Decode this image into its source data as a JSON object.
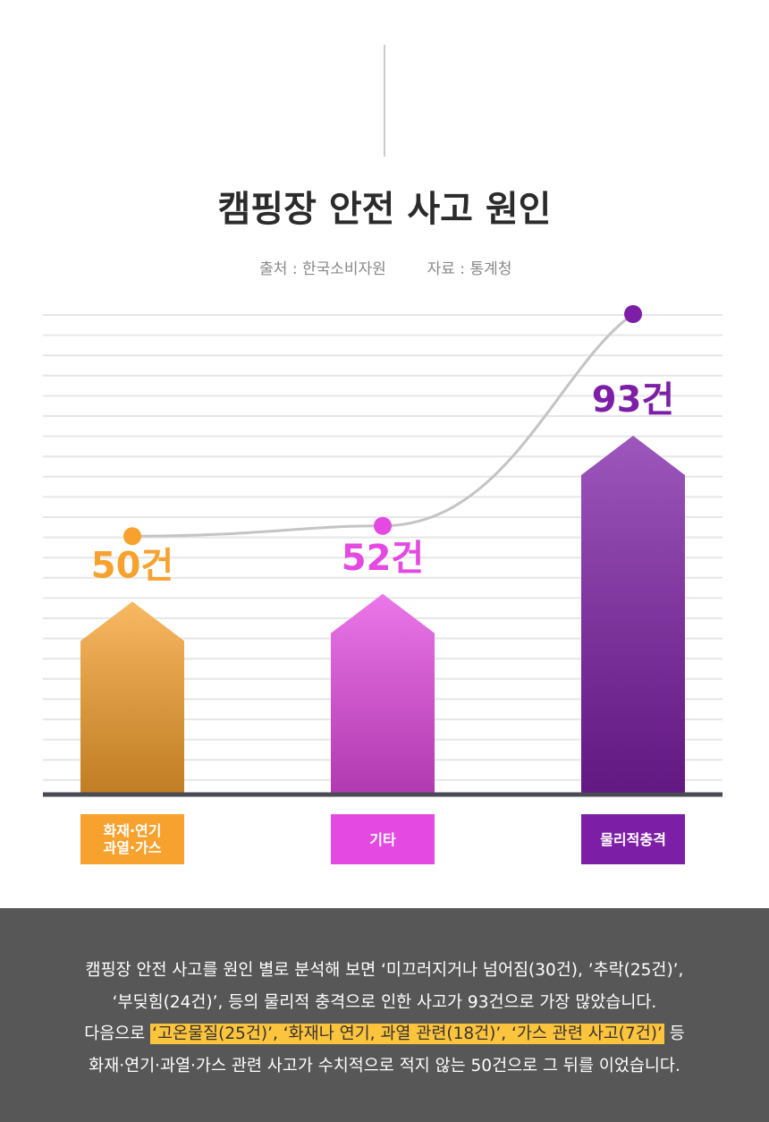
{
  "chart_data": {
    "type": "bar",
    "title": "캠핑장 안전 사고 원인",
    "source": "출처 : 한국소비자원",
    "data_source": "자료 : 통계청",
    "categories": [
      "화재·연기\n과열·가스",
      "기타",
      "물리적충격"
    ],
    "values": [
      50,
      52,
      93
    ],
    "value_labels": [
      "50건",
      "52건",
      "93건"
    ],
    "colors": [
      "#f7a12e",
      "#e44ae2",
      "#7d1fa6"
    ],
    "grid": true
  },
  "note": [
    [
      {
        "text": "캠핑장 안전 사고를 원인 별로 분석해 보면 ‘미끄러지거나 넘어짐(30건), ’추락(25건)’,",
        "highlight": false
      }
    ],
    [
      {
        "text": "‘부딪힘(24건)’, 등의 물리적 충격으로 인한 사고가 93건으로 가장 많았습니다.",
        "highlight": false
      }
    ],
    [
      {
        "text": "다음으로 ",
        "highlight": false
      },
      {
        "text": "‘고온물질(25건)’, ‘화재나 연기, 과열 관련(18건)’, ‘가스 관련 사고(7건)’",
        "highlight": true
      },
      {
        "text": " 등",
        "highlight": false
      }
    ],
    [
      {
        "text": "화재·연기·과열·가스 관련 사고가 수치적으로 적지 않는 50건으로 그 뒤를 이었습니다.",
        "highlight": false
      }
    ]
  ]
}
